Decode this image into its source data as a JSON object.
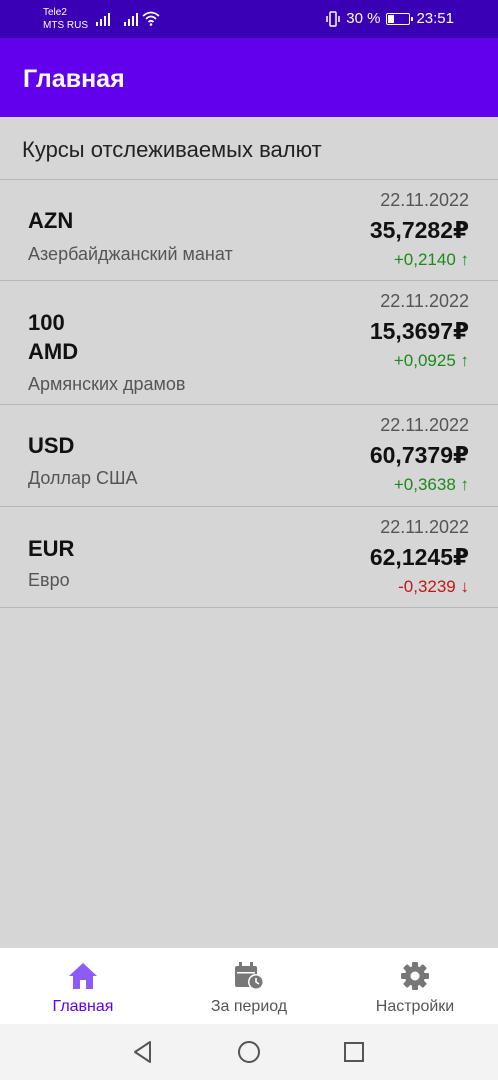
{
  "status_bar": {
    "carrier_1": "Tele2",
    "carrier_2": "MTS RUS",
    "battery_text": "30 %",
    "battery_level": 0.3,
    "time": "23:51",
    "icons": [
      "signal-icon",
      "signal-icon",
      "wifi-icon",
      "vibrate-icon",
      "battery-icon"
    ]
  },
  "app_bar": {
    "title": "Главная"
  },
  "section": {
    "title": "Курсы отслеживаемых валют"
  },
  "rates": [
    {
      "code": "AZN",
      "name": "Азербайджанский манат",
      "date": "22.11.2022",
      "value": "35,7282₽",
      "change": "+0,2140 ↑",
      "direction": "up"
    },
    {
      "code": "100\nAMD",
      "name": "Армянских драмов",
      "date": "22.11.2022",
      "value": "15,3697₽",
      "change": "+0,0925 ↑",
      "direction": "up"
    },
    {
      "code": "USD",
      "name": "Доллар США",
      "date": "22.11.2022",
      "value": "60,7379₽",
      "change": "+0,3638 ↑",
      "direction": "up"
    },
    {
      "code": "EUR",
      "name": "Евро",
      "date": "22.11.2022",
      "value": "62,1245₽",
      "change": "-0,3239 ↓",
      "direction": "down"
    }
  ],
  "bottom_nav": {
    "items": [
      {
        "label": "Главная",
        "icon": "home-icon",
        "active": true
      },
      {
        "label": "За период",
        "icon": "calendar-clock-icon",
        "active": false
      },
      {
        "label": "Настройки",
        "icon": "gear-icon",
        "active": false
      }
    ]
  },
  "system_nav": {
    "icons": [
      "back-icon",
      "home-circle-icon",
      "recents-icon"
    ]
  },
  "colors": {
    "status_bar": "#3a00b5",
    "app_bar": "#6200ee",
    "accent": "#6200ee",
    "background": "#d6d6d6",
    "up": "#1a8a1a",
    "down": "#c01818"
  }
}
